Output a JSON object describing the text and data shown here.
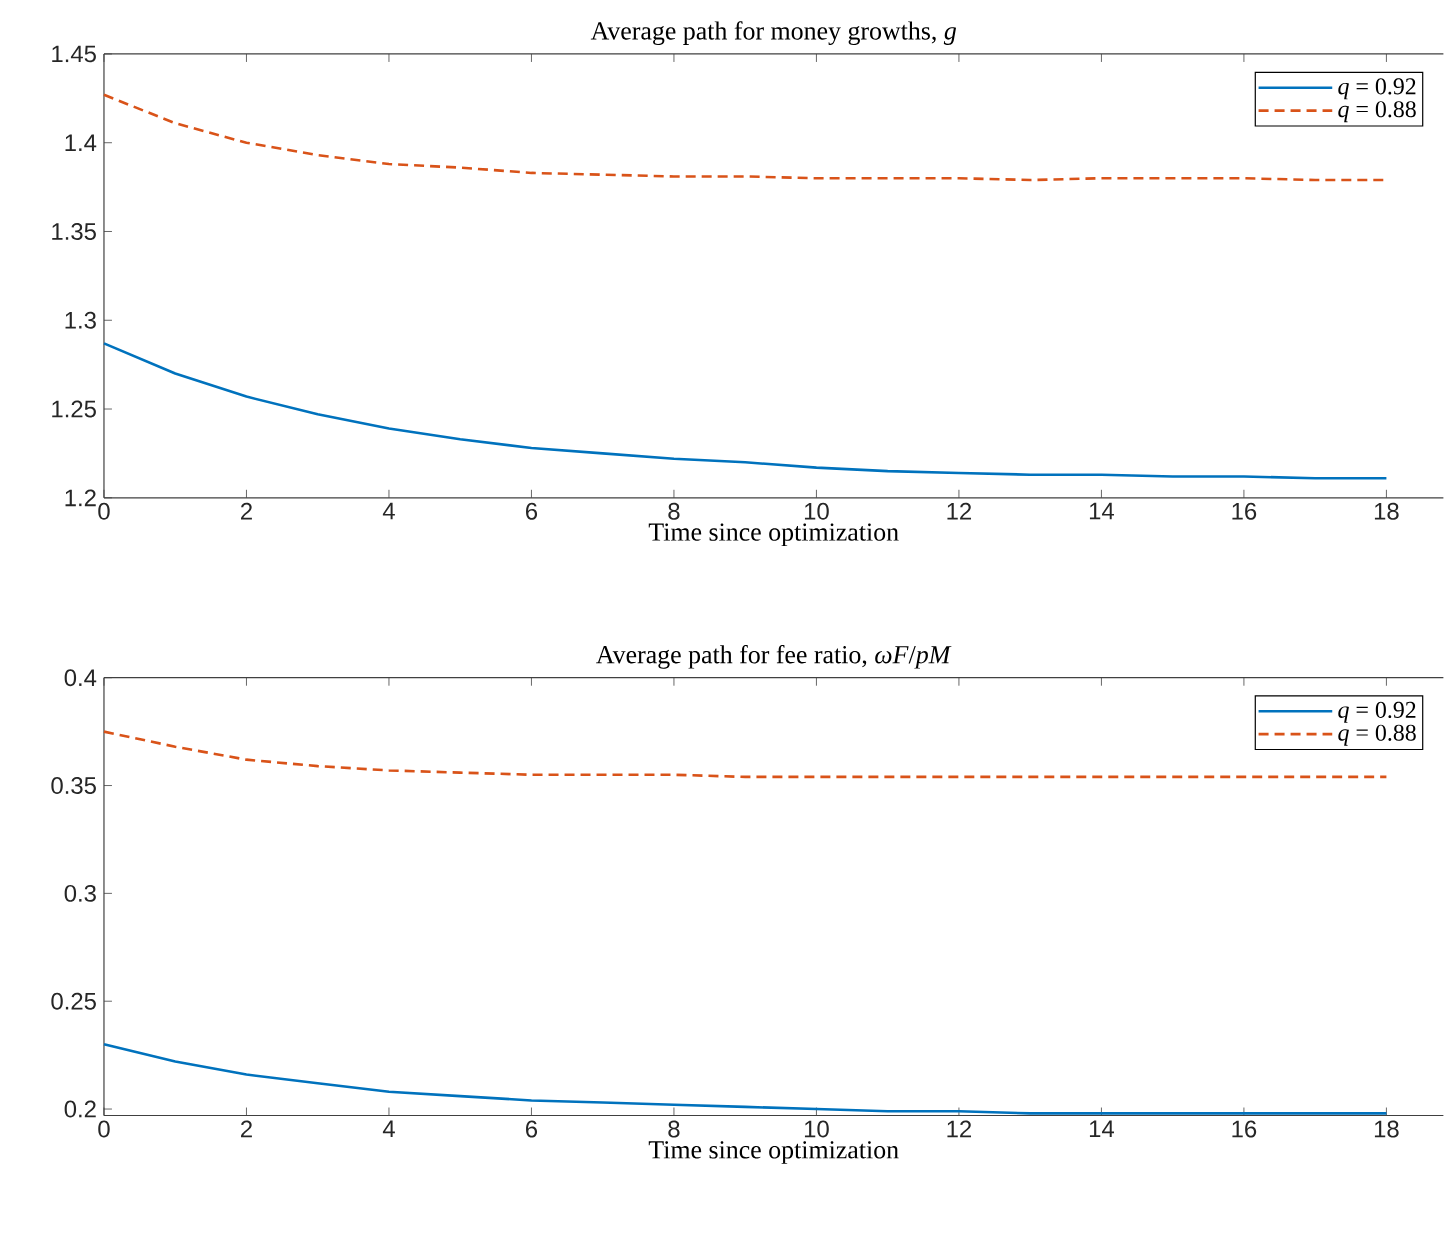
{
  "chart_data": [
    {
      "type": "line",
      "title": "Average path for money growths, *g*",
      "xlabel": "Time since optimization",
      "x": [
        0,
        1,
        2,
        3,
        4,
        5,
        6,
        7,
        8,
        9,
        10,
        11,
        12,
        13,
        14,
        15,
        16,
        17,
        18
      ],
      "xlim": [
        0,
        18.8
      ],
      "xticks": [
        0,
        2,
        4,
        6,
        8,
        10,
        12,
        14,
        16,
        18
      ],
      "ylim": [
        1.2,
        1.45
      ],
      "yticks": [
        1.2,
        1.25,
        1.3,
        1.35,
        1.4,
        1.45
      ],
      "legend": "top right",
      "series": [
        {
          "name": "*q* = 0.92",
          "color": "#0072bd",
          "line_style": "solid",
          "values": [
            1.287,
            1.27,
            1.257,
            1.247,
            1.239,
            1.233,
            1.228,
            1.225,
            1.222,
            1.22,
            1.217,
            1.215,
            1.214,
            1.213,
            1.213,
            1.212,
            1.212,
            1.211,
            1.211
          ]
        },
        {
          "name": "*q* = 0.88",
          "color": "#d95319",
          "line_style": "dashed",
          "values": [
            1.427,
            1.411,
            1.4,
            1.393,
            1.388,
            1.386,
            1.383,
            1.382,
            1.381,
            1.381,
            1.38,
            1.38,
            1.38,
            1.379,
            1.38,
            1.38,
            1.38,
            1.379,
            1.379
          ]
        }
      ]
    },
    {
      "type": "line",
      "title": "Average path for fee ratio, *ωF*/*pM*",
      "xlabel": "Time since optimization",
      "x": [
        0,
        1,
        2,
        3,
        4,
        5,
        6,
        7,
        8,
        9,
        10,
        11,
        12,
        13,
        14,
        15,
        16,
        17,
        18
      ],
      "xlim": [
        0,
        18.8
      ],
      "xticks": [
        0,
        2,
        4,
        6,
        8,
        10,
        12,
        14,
        16,
        18
      ],
      "ylim": [
        0.197,
        0.4
      ],
      "yticks": [
        0.2,
        0.25,
        0.3,
        0.35,
        0.4
      ],
      "legend": "top right",
      "series": [
        {
          "name": "*q* = 0.92",
          "color": "#0072bd",
          "line_style": "solid",
          "values": [
            0.23,
            0.222,
            0.216,
            0.212,
            0.208,
            0.206,
            0.204,
            0.203,
            0.202,
            0.201,
            0.2,
            0.199,
            0.199,
            0.198,
            0.198,
            0.198,
            0.198,
            0.198,
            0.198
          ]
        },
        {
          "name": "*q* = 0.88",
          "color": "#d95319",
          "line_style": "dashed",
          "values": [
            0.375,
            0.368,
            0.362,
            0.359,
            0.357,
            0.356,
            0.355,
            0.355,
            0.355,
            0.354,
            0.354,
            0.354,
            0.354,
            0.354,
            0.354,
            0.354,
            0.354,
            0.354,
            0.354
          ]
        }
      ]
    }
  ]
}
